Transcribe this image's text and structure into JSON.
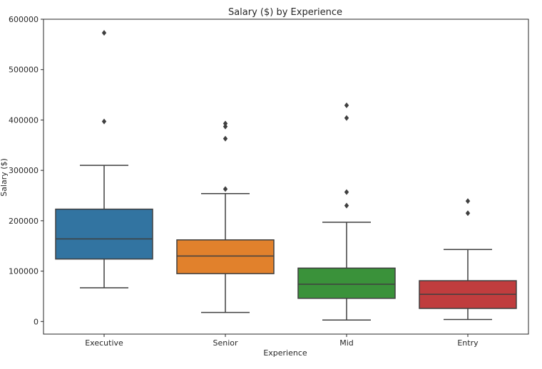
{
  "chart_data": {
    "type": "box",
    "title": "Salary ($) by Experience",
    "xlabel": "Experience",
    "ylabel": "Salary ($)",
    "ylim": [
      -25000,
      600000
    ],
    "yticks": [
      0,
      100000,
      200000,
      300000,
      400000,
      500000,
      600000
    ],
    "ytick_labels": [
      "0",
      "100000",
      "200000",
      "300000",
      "400000",
      "500000",
      "600000"
    ],
    "grid": false,
    "legend": "none",
    "categories": [
      "Executive",
      "Senior",
      "Mid",
      "Entry"
    ],
    "boxes": [
      {
        "category": "Executive",
        "color": "#3274a1",
        "whisker_low": 67000,
        "q1": 124000,
        "median": 164000,
        "q3": 223000,
        "whisker_high": 310000,
        "outliers": [
          397000,
          573000
        ]
      },
      {
        "category": "Senior",
        "color": "#e1812c",
        "whisker_low": 18000,
        "q1": 95000,
        "median": 130000,
        "q3": 162000,
        "whisker_high": 254000,
        "outliers": [
          263000,
          363000,
          387000,
          393000
        ]
      },
      {
        "category": "Mid",
        "color": "#3a923a",
        "whisker_low": 3000,
        "q1": 46000,
        "median": 74000,
        "q3": 106000,
        "whisker_high": 197000,
        "outliers": [
          230000,
          257000,
          404000,
          429000
        ]
      },
      {
        "category": "Entry",
        "color": "#c03d3e",
        "whisker_low": 4000,
        "q1": 26000,
        "median": 54000,
        "q3": 81000,
        "whisker_high": 143000,
        "outliers": [
          215000,
          239000
        ]
      }
    ]
  }
}
